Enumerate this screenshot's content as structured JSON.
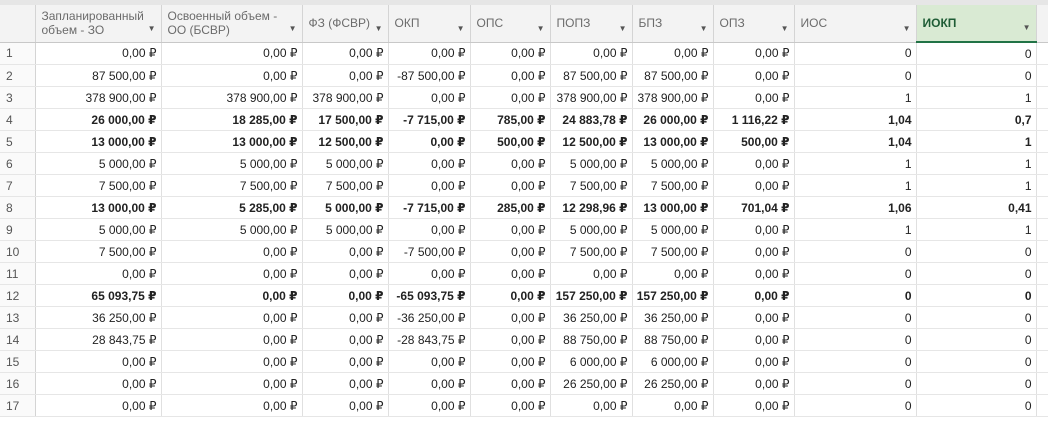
{
  "headers": [
    {
      "label": "Запланированный объем - ЗО",
      "active": false
    },
    {
      "label": "Освоенный объем - ОО (БСВР)",
      "active": false
    },
    {
      "label": "ФЗ (ФСВР)",
      "active": false
    },
    {
      "label": "ОКП",
      "active": false
    },
    {
      "label": "ОПС",
      "active": false
    },
    {
      "label": "ПОПЗ",
      "active": false
    },
    {
      "label": "БПЗ",
      "active": false
    },
    {
      "label": "ОПЗ",
      "active": false
    },
    {
      "label": "ИОС",
      "active": false
    },
    {
      "label": "ИОКП",
      "active": true
    }
  ],
  "filter_icon": "dropdown-arrow",
  "rows": [
    {
      "n": "1",
      "bold": false,
      "cells": [
        "0,00 ₽",
        "0,00 ₽",
        "0,00 ₽",
        "0,00 ₽",
        "0,00 ₽",
        "0,00 ₽",
        "0,00 ₽",
        "0,00 ₽",
        "0",
        "0"
      ]
    },
    {
      "n": "2",
      "bold": false,
      "cells": [
        "87 500,00 ₽",
        "0,00 ₽",
        "0,00 ₽",
        "-87 500,00 ₽",
        "0,00 ₽",
        "87 500,00 ₽",
        "87 500,00 ₽",
        "0,00 ₽",
        "0",
        "0"
      ]
    },
    {
      "n": "3",
      "bold": false,
      "cells": [
        "378 900,00 ₽",
        "378 900,00 ₽",
        "378 900,00 ₽",
        "0,00 ₽",
        "0,00 ₽",
        "378 900,00 ₽",
        "378 900,00 ₽",
        "0,00 ₽",
        "1",
        "1"
      ]
    },
    {
      "n": "4",
      "bold": true,
      "cells": [
        "26 000,00 ₽",
        "18 285,00 ₽",
        "17 500,00 ₽",
        "-7 715,00 ₽",
        "785,00 ₽",
        "24 883,78 ₽",
        "26 000,00 ₽",
        "1 116,22 ₽",
        "1,04",
        "0,7"
      ]
    },
    {
      "n": "5",
      "bold": true,
      "cells": [
        "13 000,00 ₽",
        "13 000,00 ₽",
        "12 500,00 ₽",
        "0,00 ₽",
        "500,00 ₽",
        "12 500,00 ₽",
        "13 000,00 ₽",
        "500,00 ₽",
        "1,04",
        "1"
      ]
    },
    {
      "n": "6",
      "bold": false,
      "cells": [
        "5 000,00 ₽",
        "5 000,00 ₽",
        "5 000,00 ₽",
        "0,00 ₽",
        "0,00 ₽",
        "5 000,00 ₽",
        "5 000,00 ₽",
        "0,00 ₽",
        "1",
        "1"
      ]
    },
    {
      "n": "7",
      "bold": false,
      "cells": [
        "7 500,00 ₽",
        "7 500,00 ₽",
        "7 500,00 ₽",
        "0,00 ₽",
        "0,00 ₽",
        "7 500,00 ₽",
        "7 500,00 ₽",
        "0,00 ₽",
        "1",
        "1"
      ]
    },
    {
      "n": "8",
      "bold": true,
      "cells": [
        "13 000,00 ₽",
        "5 285,00 ₽",
        "5 000,00 ₽",
        "-7 715,00 ₽",
        "285,00 ₽",
        "12 298,96 ₽",
        "13 000,00 ₽",
        "701,04 ₽",
        "1,06",
        "0,41"
      ]
    },
    {
      "n": "9",
      "bold": false,
      "cells": [
        "5 000,00 ₽",
        "5 000,00 ₽",
        "5 000,00 ₽",
        "0,00 ₽",
        "0,00 ₽",
        "5 000,00 ₽",
        "5 000,00 ₽",
        "0,00 ₽",
        "1",
        "1"
      ]
    },
    {
      "n": "10",
      "bold": false,
      "cells": [
        "7 500,00 ₽",
        "0,00 ₽",
        "0,00 ₽",
        "-7 500,00 ₽",
        "0,00 ₽",
        "7 500,00 ₽",
        "7 500,00 ₽",
        "0,00 ₽",
        "0",
        "0"
      ]
    },
    {
      "n": "11",
      "bold": false,
      "cells": [
        "0,00 ₽",
        "0,00 ₽",
        "0,00 ₽",
        "0,00 ₽",
        "0,00 ₽",
        "0,00 ₽",
        "0,00 ₽",
        "0,00 ₽",
        "0",
        "0"
      ]
    },
    {
      "n": "12",
      "bold": true,
      "cells": [
        "65 093,75 ₽",
        "0,00 ₽",
        "0,00 ₽",
        "-65 093,75 ₽",
        "0,00 ₽",
        "157 250,00 ₽",
        "157 250,00 ₽",
        "0,00 ₽",
        "0",
        "0"
      ]
    },
    {
      "n": "13",
      "bold": false,
      "cells": [
        "36 250,00 ₽",
        "0,00 ₽",
        "0,00 ₽",
        "-36 250,00 ₽",
        "0,00 ₽",
        "36 250,00 ₽",
        "36 250,00 ₽",
        "0,00 ₽",
        "0",
        "0"
      ]
    },
    {
      "n": "14",
      "bold": false,
      "cells": [
        "28 843,75 ₽",
        "0,00 ₽",
        "0,00 ₽",
        "-28 843,75 ₽",
        "0,00 ₽",
        "88 750,00 ₽",
        "88 750,00 ₽",
        "0,00 ₽",
        "0",
        "0"
      ]
    },
    {
      "n": "15",
      "bold": false,
      "cells": [
        "0,00 ₽",
        "0,00 ₽",
        "0,00 ₽",
        "0,00 ₽",
        "0,00 ₽",
        "6 000,00 ₽",
        "6 000,00 ₽",
        "0,00 ₽",
        "0",
        "0"
      ]
    },
    {
      "n": "16",
      "bold": false,
      "cells": [
        "0,00 ₽",
        "0,00 ₽",
        "0,00 ₽",
        "0,00 ₽",
        "0,00 ₽",
        "26 250,00 ₽",
        "26 250,00 ₽",
        "0,00 ₽",
        "0",
        "0"
      ]
    },
    {
      "n": "17",
      "bold": false,
      "cells": [
        "0,00 ₽",
        "0,00 ₽",
        "0,00 ₽",
        "0,00 ₽",
        "0,00 ₽",
        "0,00 ₽",
        "0,00 ₽",
        "0,00 ₽",
        "0",
        "0"
      ]
    }
  ]
}
